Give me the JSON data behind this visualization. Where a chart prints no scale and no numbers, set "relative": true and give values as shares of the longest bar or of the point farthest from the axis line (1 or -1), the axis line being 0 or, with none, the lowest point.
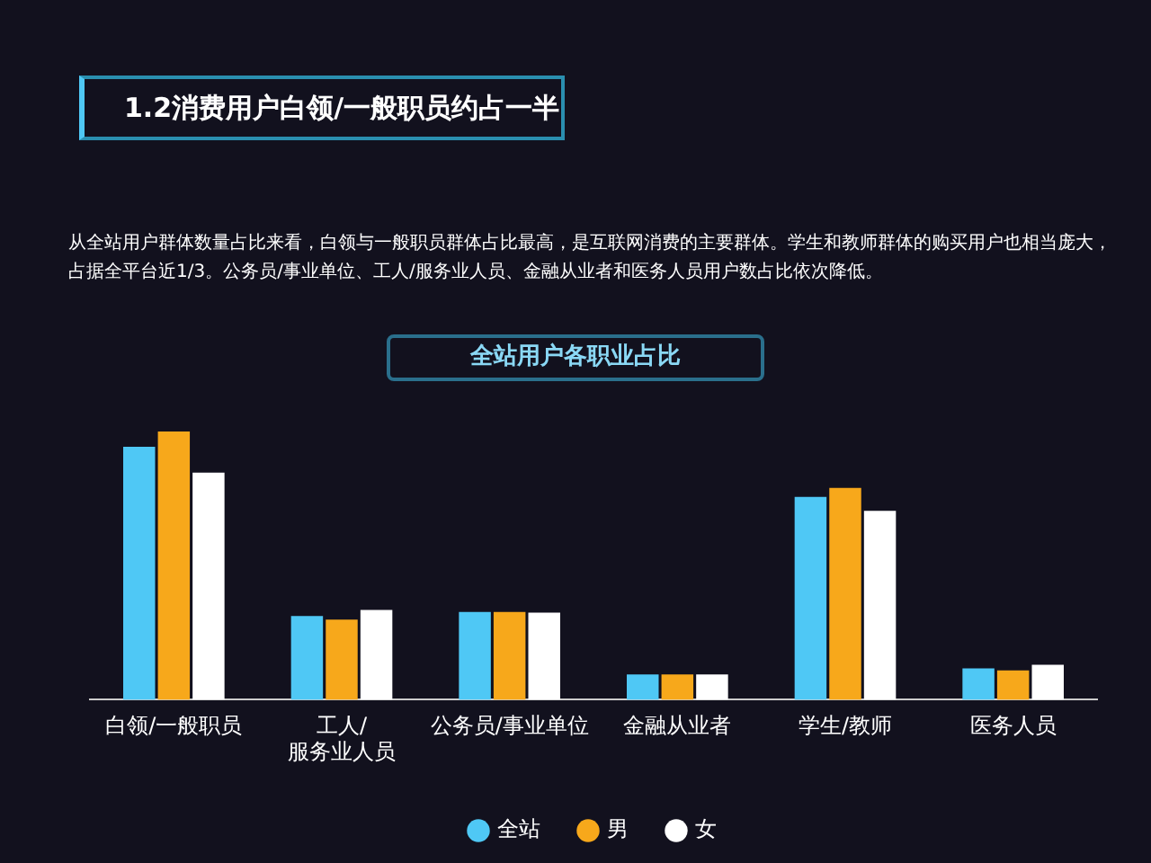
{
  "chart_data": {
    "type": "bar",
    "title": "1.2消费用户白领/一般职员约占一半",
    "subtitle": "从全站用户群体数量占比来看，白领与一般职员群体占比最高，是互联网消费的主要群体。学生和教师群体的购买用户也相当庞大，占据全平台近1/3。公务员/事业单位、工人/服务业人员、金融从业者和医务人员用户数占比依次降低。",
    "annotations": [
      "全站用户各职业占比"
    ],
    "relative": true,
    "categories": [
      "白领/一般职员",
      "工人/\n服务业人员",
      "公务员/事业单位",
      "金融从业者",
      "学生/教师",
      "医务人员"
    ],
    "series": [
      {
        "name": "全站",
        "color": "#4fc8f5",
        "values": [
          0.943,
          0.312,
          0.327,
          0.094,
          0.756,
          0.117
        ]
      },
      {
        "name": "男",
        "color": "#f7a81b",
        "values": [
          1,
          0.299,
          0.327,
          0.094,
          0.79,
          0.109
        ]
      },
      {
        "name": "女",
        "color": "#ffffff",
        "values": [
          0.847,
          0.335,
          0.325,
          0.094,
          0.704,
          0.13
        ]
      }
    ],
    "legend": "bottom"
  }
}
